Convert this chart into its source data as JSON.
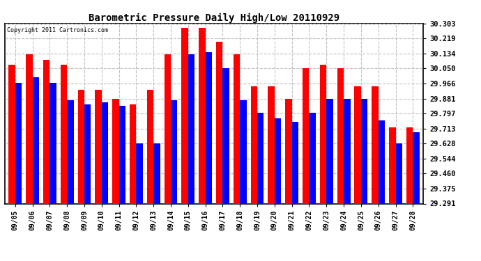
{
  "title": "Barometric Pressure Daily High/Low 20110929",
  "copyright": "Copyright 2011 Cartronics.com",
  "dates": [
    "09/05",
    "09/06",
    "09/07",
    "09/08",
    "09/09",
    "09/10",
    "09/11",
    "09/12",
    "09/13",
    "09/14",
    "09/15",
    "09/16",
    "09/17",
    "09/18",
    "09/19",
    "09/20",
    "09/21",
    "09/22",
    "09/23",
    "09/24",
    "09/25",
    "09/26",
    "09/27",
    "09/28"
  ],
  "highs": [
    30.07,
    30.13,
    30.1,
    30.07,
    29.93,
    29.93,
    29.88,
    29.85,
    29.93,
    30.13,
    30.28,
    30.28,
    30.2,
    30.13,
    29.95,
    29.95,
    29.88,
    30.05,
    30.07,
    30.05,
    29.95,
    29.95,
    29.72,
    29.72
  ],
  "lows": [
    29.97,
    30.0,
    29.97,
    29.87,
    29.85,
    29.86,
    29.84,
    29.63,
    29.63,
    29.87,
    30.13,
    30.14,
    30.05,
    29.87,
    29.8,
    29.77,
    29.75,
    29.8,
    29.88,
    29.88,
    29.88,
    29.76,
    29.63,
    29.69
  ],
  "ylim_min": 29.291,
  "ylim_max": 30.303,
  "yticks": [
    29.291,
    29.375,
    29.46,
    29.544,
    29.628,
    29.713,
    29.797,
    29.881,
    29.966,
    30.05,
    30.134,
    30.219,
    30.303
  ],
  "high_color": "#FF0000",
  "low_color": "#0000FF",
  "bg_color": "#FFFFFF",
  "grid_color": "#C0C0C0",
  "bar_width": 0.38,
  "figwidth": 6.9,
  "figheight": 3.75,
  "dpi": 100
}
